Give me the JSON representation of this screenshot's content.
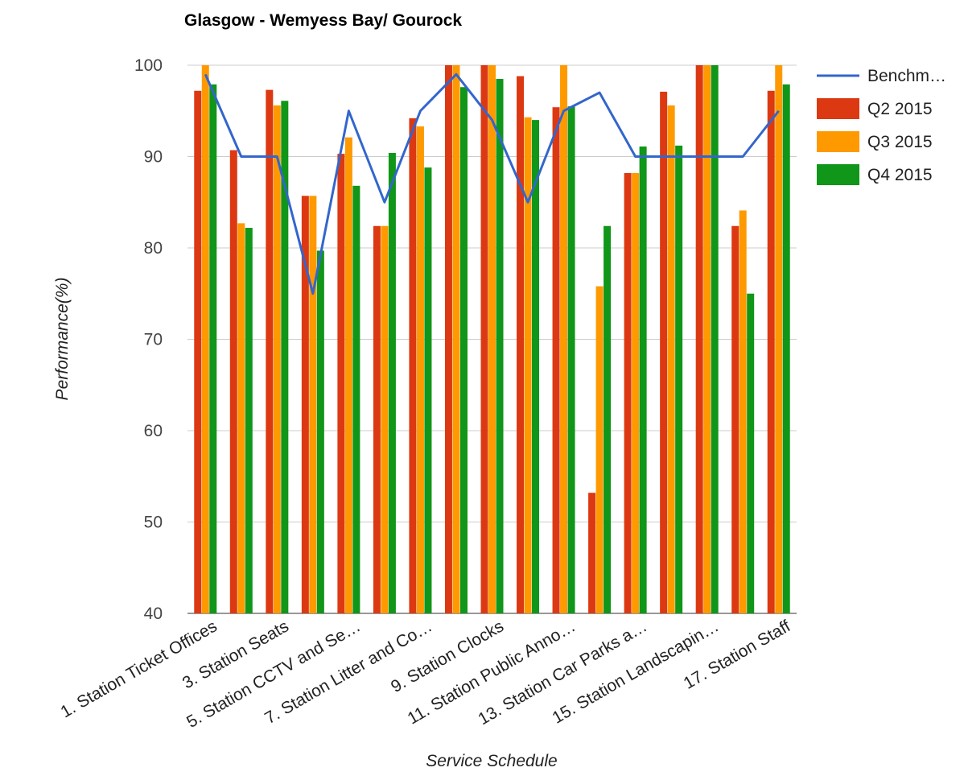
{
  "chart_data": {
    "type": "bar",
    "title": "Glasgow - Wemyess Bay/ Gourock",
    "xlabel": "Service Schedule",
    "ylabel": "Performance(%)",
    "ylim": [
      40,
      100
    ],
    "yticks": [
      40,
      50,
      60,
      70,
      80,
      90,
      100
    ],
    "grid": true,
    "legend_position": "right",
    "category_labels_shown": [
      "1. Station Ticket Offices",
      "3. Station Seats",
      "5. Station CCTV and Se…",
      "7. Station Litter and Co…",
      "9. Station Clocks",
      "11. Station Public Anno…",
      "13. Station Car Parks a…",
      "15. Station Landscapin…",
      "17. Station Staff"
    ],
    "category_count": 17,
    "series": [
      {
        "name": "Q2 2015",
        "kind": "bar",
        "color": "#dc3912",
        "values": [
          97.2,
          90.7,
          97.3,
          85.7,
          90.3,
          82.4,
          94.2,
          100,
          100,
          98.8,
          95.4,
          53.2,
          88.2,
          97.1,
          100,
          82.4,
          97.2
        ]
      },
      {
        "name": "Q3 2015",
        "kind": "bar",
        "color": "#ff9900",
        "values": [
          100,
          82.7,
          95.6,
          85.7,
          92.1,
          82.4,
          93.3,
          100,
          100,
          94.3,
          100,
          75.8,
          88.2,
          95.6,
          100,
          84.1,
          100
        ]
      },
      {
        "name": "Q4 2015",
        "kind": "bar",
        "color": "#109618",
        "values": [
          97.9,
          82.2,
          96.1,
          79.7,
          86.8,
          90.4,
          88.8,
          97.6,
          98.5,
          94.0,
          95.5,
          82.4,
          91.1,
          91.2,
          100,
          75.0,
          97.9
        ]
      },
      {
        "name": "Benchm…",
        "kind": "line",
        "color": "#3366cc",
        "values": [
          99,
          90,
          90,
          75,
          95,
          85,
          95,
          99,
          94,
          85,
          95,
          97,
          90,
          90,
          90,
          90,
          95
        ]
      }
    ]
  }
}
